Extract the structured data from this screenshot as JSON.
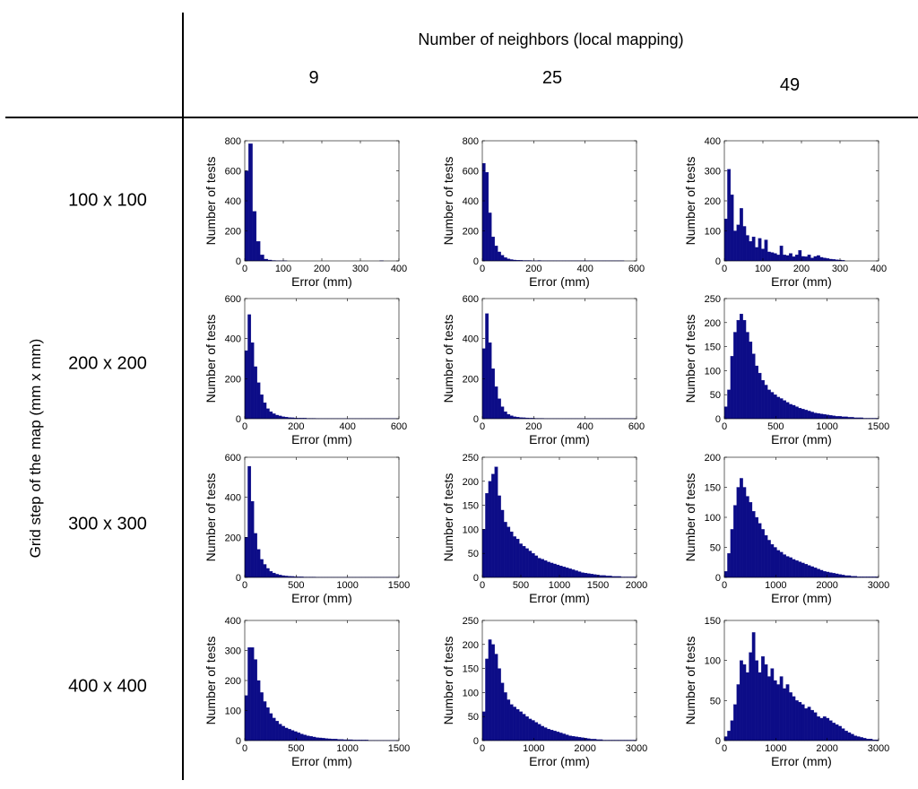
{
  "header": {
    "title": "Number of neighbors (local mapping)",
    "columns": [
      "9",
      "25",
      "49"
    ],
    "row_axis_title": "Grid step of the map (mm x mm)",
    "rows": [
      "100 x 100",
      "200 x 200",
      "300 x 300",
      "400 x 400"
    ]
  },
  "colors": {
    "bar": "#0c0c87",
    "axis": "#000000",
    "grid_line": "#000000"
  },
  "chart_data": [
    {
      "type": "bar",
      "row": "100 x 100",
      "column": "9",
      "xlabel": "Error (mm)",
      "ylabel": "Number of tests",
      "xlim": [
        0,
        400
      ],
      "ylim": [
        0,
        800
      ],
      "xticks": [
        0,
        100,
        200,
        300,
        400
      ],
      "yticks": [
        0,
        200,
        400,
        600,
        800
      ],
      "bin_width": 10,
      "values": [
        600,
        780,
        330,
        130,
        40,
        12,
        6,
        3,
        2,
        1,
        1,
        0,
        0,
        0,
        0,
        0,
        0,
        0,
        0,
        0,
        0,
        0,
        0,
        0,
        0,
        0,
        0,
        0,
        0,
        0,
        0,
        0,
        0,
        0,
        0,
        1,
        0,
        0,
        0,
        0
      ]
    },
    {
      "type": "bar",
      "row": "100 x 100",
      "column": "25",
      "xlabel": "Error (mm)",
      "ylabel": "Number of tests",
      "xlim": [
        0,
        600
      ],
      "ylim": [
        0,
        800
      ],
      "xticks": [
        0,
        200,
        400,
        600
      ],
      "yticks": [
        0,
        200,
        400,
        600,
        800
      ],
      "bin_width": 12,
      "values": [
        650,
        590,
        320,
        160,
        100,
        60,
        38,
        22,
        14,
        9,
        6,
        5,
        4,
        3,
        3,
        3,
        2,
        2,
        3,
        2,
        2,
        2,
        2,
        1,
        1,
        1,
        1,
        1,
        1,
        1,
        1,
        1,
        1,
        1,
        1,
        1,
        1,
        1,
        1,
        1,
        1,
        1,
        1,
        1,
        1,
        1,
        0,
        0,
        0,
        0
      ]
    },
    {
      "type": "bar",
      "row": "100 x 100",
      "column": "49",
      "xlabel": "Error (mm)",
      "ylabel": "Number of tests",
      "xlim": [
        0,
        400
      ],
      "ylim": [
        0,
        400
      ],
      "xticks": [
        0,
        100,
        200,
        300,
        400
      ],
      "yticks": [
        0,
        100,
        200,
        300,
        400
      ],
      "bin_width": 8,
      "values": [
        140,
        305,
        220,
        100,
        120,
        175,
        115,
        85,
        65,
        80,
        45,
        75,
        40,
        70,
        30,
        28,
        25,
        20,
        50,
        20,
        18,
        25,
        14,
        20,
        35,
        15,
        14,
        20,
        10,
        15,
        18,
        12,
        10,
        8,
        6,
        5,
        4,
        3,
        2,
        0,
        0,
        0,
        0,
        0,
        0,
        0,
        0,
        0,
        0,
        0
      ]
    },
    {
      "type": "bar",
      "row": "200 x 200",
      "column": "9",
      "xlabel": "Error (mm)",
      "ylabel": "Number of tests",
      "xlim": [
        0,
        600
      ],
      "ylim": [
        0,
        600
      ],
      "xticks": [
        0,
        200,
        400,
        600
      ],
      "yticks": [
        0,
        200,
        400,
        600
      ],
      "bin_width": 12,
      "values": [
        340,
        520,
        380,
        260,
        180,
        120,
        80,
        50,
        35,
        25,
        18,
        14,
        10,
        8,
        6,
        5,
        4,
        3,
        3,
        3,
        2,
        2,
        2,
        1,
        1,
        1,
        1,
        1,
        1,
        1,
        1,
        1,
        1,
        1,
        1,
        1,
        1,
        1,
        1,
        1,
        1,
        1,
        1,
        1,
        1,
        1,
        1,
        1,
        1,
        1
      ]
    },
    {
      "type": "bar",
      "row": "200 x 200",
      "column": "25",
      "xlabel": "Error (mm)",
      "ylabel": "Number of tests",
      "xlim": [
        0,
        600
      ],
      "ylim": [
        0,
        600
      ],
      "xticks": [
        0,
        200,
        400,
        600
      ],
      "yticks": [
        0,
        200,
        400,
        600
      ],
      "bin_width": 12,
      "values": [
        350,
        525,
        380,
        250,
        160,
        100,
        60,
        35,
        22,
        15,
        10,
        8,
        6,
        5,
        4,
        3,
        3,
        2,
        2,
        2,
        1,
        1,
        1,
        1,
        1,
        1,
        1,
        1,
        1,
        1,
        1,
        1,
        1,
        1,
        1,
        1,
        1,
        1,
        1,
        1,
        1,
        1,
        1,
        1,
        1,
        1,
        1,
        1,
        1,
        1
      ]
    },
    {
      "type": "bar",
      "row": "200 x 200",
      "column": "49",
      "xlabel": "Error (mm)",
      "ylabel": "Number of tests",
      "xlim": [
        0,
        1500
      ],
      "ylim": [
        0,
        250
      ],
      "xticks": [
        0,
        500,
        1000,
        1500
      ],
      "yticks": [
        0,
        50,
        100,
        150,
        200,
        250
      ],
      "bin_width": 30,
      "values": [
        25,
        60,
        130,
        180,
        205,
        218,
        205,
        180,
        160,
        135,
        110,
        95,
        80,
        70,
        60,
        55,
        50,
        45,
        42,
        38,
        34,
        30,
        28,
        25,
        22,
        20,
        18,
        16,
        14,
        12,
        11,
        10,
        9,
        8,
        7,
        6,
        5,
        5,
        4,
        4,
        3,
        3,
        2,
        2,
        2,
        1,
        1,
        1,
        1,
        1
      ]
    },
    {
      "type": "bar",
      "row": "300 x 300",
      "column": "9",
      "xlabel": "Error (mm)",
      "ylabel": "Number of tests",
      "xlim": [
        0,
        1500
      ],
      "ylim": [
        0,
        600
      ],
      "xticks": [
        0,
        500,
        1000,
        1500
      ],
      "yticks": [
        0,
        200,
        400,
        600
      ],
      "bin_width": 30,
      "values": [
        200,
        555,
        380,
        220,
        140,
        90,
        65,
        45,
        30,
        22,
        16,
        12,
        9,
        7,
        6,
        5,
        4,
        3,
        3,
        2,
        2,
        2,
        2,
        1,
        1,
        1,
        1,
        1,
        1,
        1,
        1,
        1,
        1,
        1,
        1,
        1,
        1,
        1,
        1,
        1,
        1,
        1,
        1,
        1,
        1,
        1,
        1,
        1,
        1,
        1
      ]
    },
    {
      "type": "bar",
      "row": "300 x 300",
      "column": "25",
      "xlabel": "Error (mm)",
      "ylabel": "Number of tests",
      "xlim": [
        0,
        2000
      ],
      "ylim": [
        0,
        250
      ],
      "xticks": [
        0,
        500,
        1000,
        1500,
        2000
      ],
      "yticks": [
        0,
        50,
        100,
        150,
        200,
        250
      ],
      "bin_width": 40,
      "values": [
        100,
        175,
        200,
        215,
        230,
        170,
        140,
        115,
        105,
        95,
        85,
        80,
        70,
        65,
        60,
        55,
        50,
        45,
        40,
        38,
        35,
        32,
        30,
        28,
        26,
        24,
        22,
        20,
        18,
        16,
        14,
        12,
        10,
        9,
        8,
        7,
        6,
        5,
        4,
        4,
        3,
        3,
        2,
        2,
        2,
        1,
        1,
        1,
        1,
        1
      ]
    },
    {
      "type": "bar",
      "row": "300 x 300",
      "column": "49",
      "xlabel": "Error (mm)",
      "ylabel": "Number of tests",
      "xlim": [
        0,
        3000
      ],
      "ylim": [
        0,
        200
      ],
      "xticks": [
        0,
        1000,
        2000,
        3000
      ],
      "yticks": [
        0,
        50,
        100,
        150,
        200
      ],
      "bin_width": 60,
      "values": [
        10,
        40,
        80,
        120,
        150,
        165,
        150,
        135,
        125,
        110,
        100,
        90,
        80,
        70,
        62,
        55,
        50,
        45,
        42,
        38,
        35,
        33,
        30,
        28,
        26,
        24,
        22,
        20,
        18,
        16,
        14,
        12,
        10,
        9,
        8,
        7,
        6,
        5,
        4,
        3,
        3,
        2,
        2,
        1,
        1,
        1,
        1,
        1,
        1,
        1
      ]
    },
    {
      "type": "bar",
      "row": "400 x 400",
      "column": "9",
      "xlabel": "Error (mm)",
      "ylabel": "Number of tests",
      "xlim": [
        0,
        1500
      ],
      "ylim": [
        0,
        400
      ],
      "xticks": [
        0,
        500,
        1000,
        1500
      ],
      "yticks": [
        0,
        100,
        200,
        300,
        400
      ],
      "bin_width": 30,
      "values": [
        150,
        310,
        310,
        270,
        200,
        160,
        130,
        110,
        90,
        75,
        65,
        55,
        48,
        42,
        38,
        34,
        30,
        26,
        22,
        19,
        16,
        14,
        12,
        10,
        9,
        8,
        7,
        6,
        5,
        5,
        4,
        4,
        3,
        3,
        3,
        2,
        2,
        2,
        2,
        2,
        1,
        1,
        1,
        1,
        1,
        1,
        1,
        1,
        1,
        1
      ]
    },
    {
      "type": "bar",
      "row": "400 x 400",
      "column": "25",
      "xlabel": "Error (mm)",
      "ylabel": "Number of tests",
      "xlim": [
        0,
        3000
      ],
      "ylim": [
        0,
        250
      ],
      "xticks": [
        0,
        1000,
        2000,
        3000
      ],
      "yticks": [
        0,
        50,
        100,
        150,
        200,
        250
      ],
      "bin_width": 60,
      "values": [
        60,
        170,
        210,
        200,
        180,
        150,
        120,
        100,
        85,
        75,
        70,
        65,
        60,
        55,
        50,
        45,
        42,
        38,
        34,
        30,
        27,
        24,
        22,
        20,
        18,
        16,
        14,
        12,
        10,
        9,
        8,
        7,
        6,
        5,
        4,
        3,
        3,
        2,
        2,
        1,
        1,
        1,
        1,
        1,
        1,
        1,
        1,
        1,
        1,
        1
      ]
    },
    {
      "type": "bar",
      "row": "400 x 400",
      "column": "49",
      "xlabel": "Error (mm)",
      "ylabel": "Number of tests",
      "xlim": [
        0,
        3000
      ],
      "ylim": [
        0,
        150
      ],
      "xticks": [
        0,
        1000,
        2000,
        3000
      ],
      "yticks": [
        0,
        50,
        100,
        150
      ],
      "bin_width": 60,
      "values": [
        5,
        12,
        25,
        45,
        70,
        100,
        95,
        85,
        110,
        135,
        100,
        85,
        105,
        95,
        80,
        90,
        75,
        70,
        80,
        65,
        70,
        60,
        55,
        50,
        48,
        45,
        40,
        42,
        38,
        35,
        30,
        28,
        30,
        28,
        25,
        22,
        20,
        18,
        15,
        12,
        10,
        8,
        6,
        5,
        4,
        3,
        2,
        2,
        1,
        1
      ]
    }
  ]
}
